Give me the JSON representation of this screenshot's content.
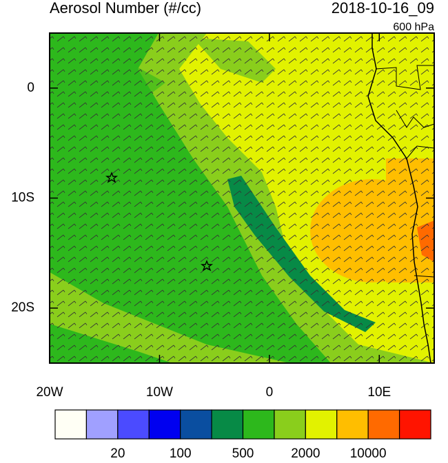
{
  "map": {
    "title": "Aerosol Number (#/cc)",
    "time": "2018-10-16_09",
    "level": "600 hPa",
    "xlim": [
      -20,
      15
    ],
    "ylim": [
      -25,
      5
    ],
    "xticks": [
      {
        "value": -20,
        "label": "20W"
      },
      {
        "value": -10,
        "label": "10W"
      },
      0,
      {
        "value": 10,
        "label": "10E"
      }
    ],
    "yticks": [
      0,
      {
        "value": -10,
        "label": "10S"
      },
      {
        "value": -20,
        "label": "20S"
      }
    ],
    "colorbar": {
      "colors": [
        "#fffff5",
        "#a0a0ff",
        "#4b4bff",
        "#0000f0",
        "#0a4ea0",
        "#078a46",
        "#2db81c",
        "#8ace1c",
        "#e2f200",
        "#ffbe00",
        "#ff6a00",
        "#ff1400"
      ],
      "labels": [
        "20",
        "100",
        "500",
        "2000",
        "10000"
      ]
    }
  }
}
